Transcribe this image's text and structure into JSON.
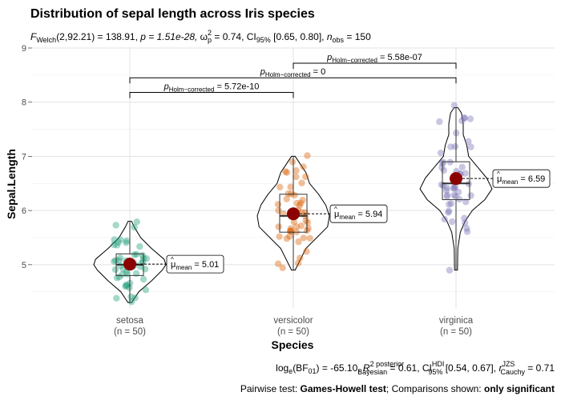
{
  "chart_data": {
    "type": "violin",
    "title": "Distribution of sepal length across Iris species",
    "subtitle_stats": {
      "test_label": "F",
      "test_sub": "Welch",
      "test_args": "(2,92.21) = 138.91, ",
      "p_text": "p = 1.51e-28, ",
      "effect_label": "ω",
      "effect_sup": "2",
      "effect_sub": "p",
      "effect_text": " = 0.74, CI",
      "ci_sub": "95%",
      "ci_text": " [0.65, 0.80], ",
      "n_label": "n",
      "n_sub": "obs",
      "n_text": " = 150"
    },
    "xlabel": "Species",
    "ylabel": "Sepal.Length",
    "ylim": [
      4.2,
      9.0
    ],
    "yticks": [
      5,
      6,
      7,
      8,
      9
    ],
    "y_tick_labels": [
      "5",
      "6",
      "7",
      "8",
      "9"
    ],
    "categories": [
      "setosa",
      "versicolor",
      "virginica"
    ],
    "n_labels": [
      "(n = 50)",
      "(n = 50)",
      "(n = 50)"
    ],
    "colors": [
      "#1b9e77",
      "#d95f02",
      "#7570b3"
    ],
    "mean_color": "#8b0000",
    "series": [
      {
        "category": "setosa",
        "mean": 5.01,
        "mean_label": "5.01",
        "box": {
          "q1": 4.8,
          "median": 5.0,
          "q3": 5.2,
          "whisker_low": 4.3,
          "whisker_high": 5.8
        },
        "violin": [
          [
            4.3,
            0.05
          ],
          [
            4.5,
            0.25
          ],
          [
            4.7,
            0.6
          ],
          [
            4.9,
            0.9
          ],
          [
            5.0,
            1.0
          ],
          [
            5.1,
            0.95
          ],
          [
            5.3,
            0.6
          ],
          [
            5.5,
            0.3
          ],
          [
            5.7,
            0.12
          ],
          [
            5.8,
            0.05
          ]
        ],
        "points": [
          5.1,
          4.9,
          4.7,
          4.6,
          5.0,
          5.4,
          4.6,
          5.0,
          4.4,
          4.9,
          5.4,
          4.8,
          4.8,
          4.3,
          5.8,
          5.7,
          5.4,
          5.1,
          5.7,
          5.1,
          5.4,
          5.1,
          4.6,
          5.1,
          4.8,
          5.0,
          5.0,
          5.2,
          5.2,
          4.7,
          4.8,
          5.4,
          5.2,
          5.5,
          4.9,
          5.0,
          5.5,
          4.9,
          4.4,
          5.1,
          5.0,
          4.5,
          4.4,
          5.0,
          5.1,
          4.8,
          5.1,
          4.6,
          5.3,
          5.0
        ]
      },
      {
        "category": "versicolor",
        "mean": 5.94,
        "mean_label": "5.94",
        "box": {
          "q1": 5.6,
          "median": 5.9,
          "q3": 6.3,
          "whisker_low": 4.9,
          "whisker_high": 7.0
        },
        "violin": [
          [
            4.9,
            0.05
          ],
          [
            5.1,
            0.2
          ],
          [
            5.3,
            0.35
          ],
          [
            5.5,
            0.65
          ],
          [
            5.7,
            0.95
          ],
          [
            5.9,
            1.0
          ],
          [
            6.1,
            0.9
          ],
          [
            6.3,
            0.7
          ],
          [
            6.5,
            0.45
          ],
          [
            6.7,
            0.35
          ],
          [
            6.9,
            0.15
          ],
          [
            7.0,
            0.05
          ]
        ],
        "points": [
          7.0,
          6.4,
          6.9,
          5.5,
          6.5,
          5.7,
          6.3,
          4.9,
          6.6,
          5.2,
          5.0,
          5.9,
          6.0,
          6.1,
          5.6,
          6.7,
          5.6,
          5.8,
          6.2,
          5.6,
          5.9,
          6.1,
          6.3,
          6.1,
          6.4,
          6.6,
          6.8,
          6.7,
          6.0,
          5.7,
          5.5,
          5.5,
          5.8,
          6.0,
          5.4,
          6.0,
          6.7,
          6.3,
          5.6,
          5.5,
          5.5,
          6.1,
          5.8,
          5.0,
          5.6,
          5.7,
          5.7,
          6.2,
          5.1,
          5.7
        ]
      },
      {
        "category": "virginica",
        "mean": 6.59,
        "mean_label": "6.59",
        "box": {
          "q1": 6.2,
          "median": 6.5,
          "q3": 6.9,
          "whisker_low": 4.9,
          "whisker_high": 7.9
        },
        "violin": [
          [
            4.9,
            0.04
          ],
          [
            5.3,
            0.05
          ],
          [
            5.6,
            0.12
          ],
          [
            5.8,
            0.25
          ],
          [
            6.0,
            0.45
          ],
          [
            6.2,
            0.8
          ],
          [
            6.4,
            1.0
          ],
          [
            6.6,
            0.85
          ],
          [
            6.8,
            0.6
          ],
          [
            7.0,
            0.35
          ],
          [
            7.2,
            0.3
          ],
          [
            7.4,
            0.2
          ],
          [
            7.6,
            0.2
          ],
          [
            7.8,
            0.15
          ],
          [
            7.9,
            0.05
          ]
        ],
        "points": [
          6.3,
          5.8,
          7.1,
          6.3,
          6.5,
          7.6,
          4.9,
          7.3,
          6.7,
          7.2,
          6.5,
          6.4,
          6.8,
          5.7,
          5.8,
          6.4,
          6.5,
          7.7,
          7.7,
          6.0,
          6.9,
          5.6,
          7.7,
          6.3,
          6.7,
          7.2,
          6.2,
          6.1,
          6.4,
          7.2,
          7.4,
          7.9,
          6.4,
          6.3,
          6.1,
          7.7,
          6.3,
          6.4,
          6.0,
          6.9,
          6.7,
          6.9,
          5.8,
          6.8,
          6.7,
          6.7,
          6.3,
          6.5,
          6.2,
          5.9
        ]
      }
    ],
    "pairwise": [
      {
        "from": 1,
        "to": 2,
        "label_main": "p",
        "label_sub": "Holm−corrected",
        "label_value": " = 5.58e-07",
        "y": 8.72
      },
      {
        "from": 0,
        "to": 2,
        "label_main": "p",
        "label_sub": "Holm−corrected",
        "label_value": " = 0",
        "y": 8.45
      },
      {
        "from": 0,
        "to": 1,
        "label_main": "p",
        "label_sub": "Holm−corrected",
        "label_value": " = 5.72e-10",
        "y": 8.18
      }
    ],
    "caption_bf": {
      "log_label": "log",
      "log_sub": "e",
      "bf_text": "(BF",
      "bf_sub": "01",
      "bf_value": ") = -65.10, ",
      "r_label": "R",
      "r_sup": "2 posterior",
      "r_sub": "Bayesian",
      "r_value": " = 0.61, CI",
      "ci_sup": "HDI",
      "ci_sub": "95%",
      "ci_value": " [0.54, 0.67], ",
      "rc_label": "r",
      "rc_sup": "JZS",
      "rc_sub": "Cauchy",
      "rc_value": " = 0.71"
    },
    "caption_pairwise": {
      "prefix": "Pairwise test: ",
      "test": "Games-Howell test",
      "middle": "; Comparisons shown: ",
      "shown": "only significant"
    },
    "mean_label_prefix": "μ",
    "mean_label_sub": "mean",
    "grid": true
  }
}
